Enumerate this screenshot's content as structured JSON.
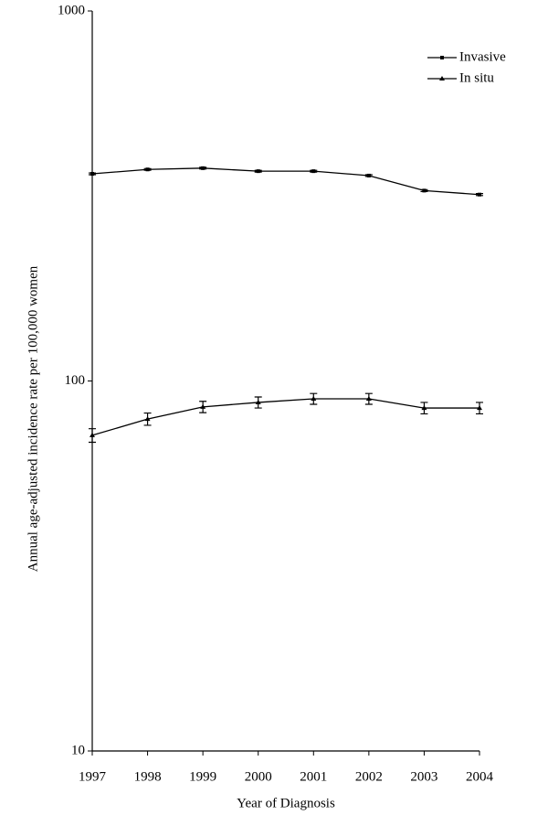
{
  "chart_data": {
    "type": "line",
    "x_label": "Year of Diagnosis",
    "y_label": "Annual age-adjusted incidence rate per 100,000 women",
    "x": [
      1997,
      1998,
      1999,
      2000,
      2001,
      2002,
      2003,
      2004
    ],
    "xlim": [
      1997,
      2004
    ],
    "xticks": [
      1997,
      1998,
      1999,
      2000,
      2001,
      2002,
      2003,
      2004
    ],
    "ylim": [
      10,
      1000
    ],
    "yticks": [
      10,
      100,
      1000
    ],
    "log_y": true,
    "grid": false,
    "legend_position": "upper-right",
    "series": [
      {
        "name": "Invasive",
        "color": "#000000",
        "marker": "square",
        "values": [
          363,
          373,
          376,
          369,
          369,
          359,
          327,
          319
        ],
        "errors": [
          2,
          2,
          2,
          2,
          2,
          2,
          2,
          2
        ]
      },
      {
        "name": "In situ",
        "color": "#000000",
        "marker": "triangle",
        "values": [
          71.3,
          78.9,
          85.1,
          87.5,
          89.5,
          89.5,
          84.5,
          84.5
        ],
        "errors": [
          3,
          3,
          3,
          3,
          3,
          3,
          3,
          3
        ]
      }
    ]
  }
}
